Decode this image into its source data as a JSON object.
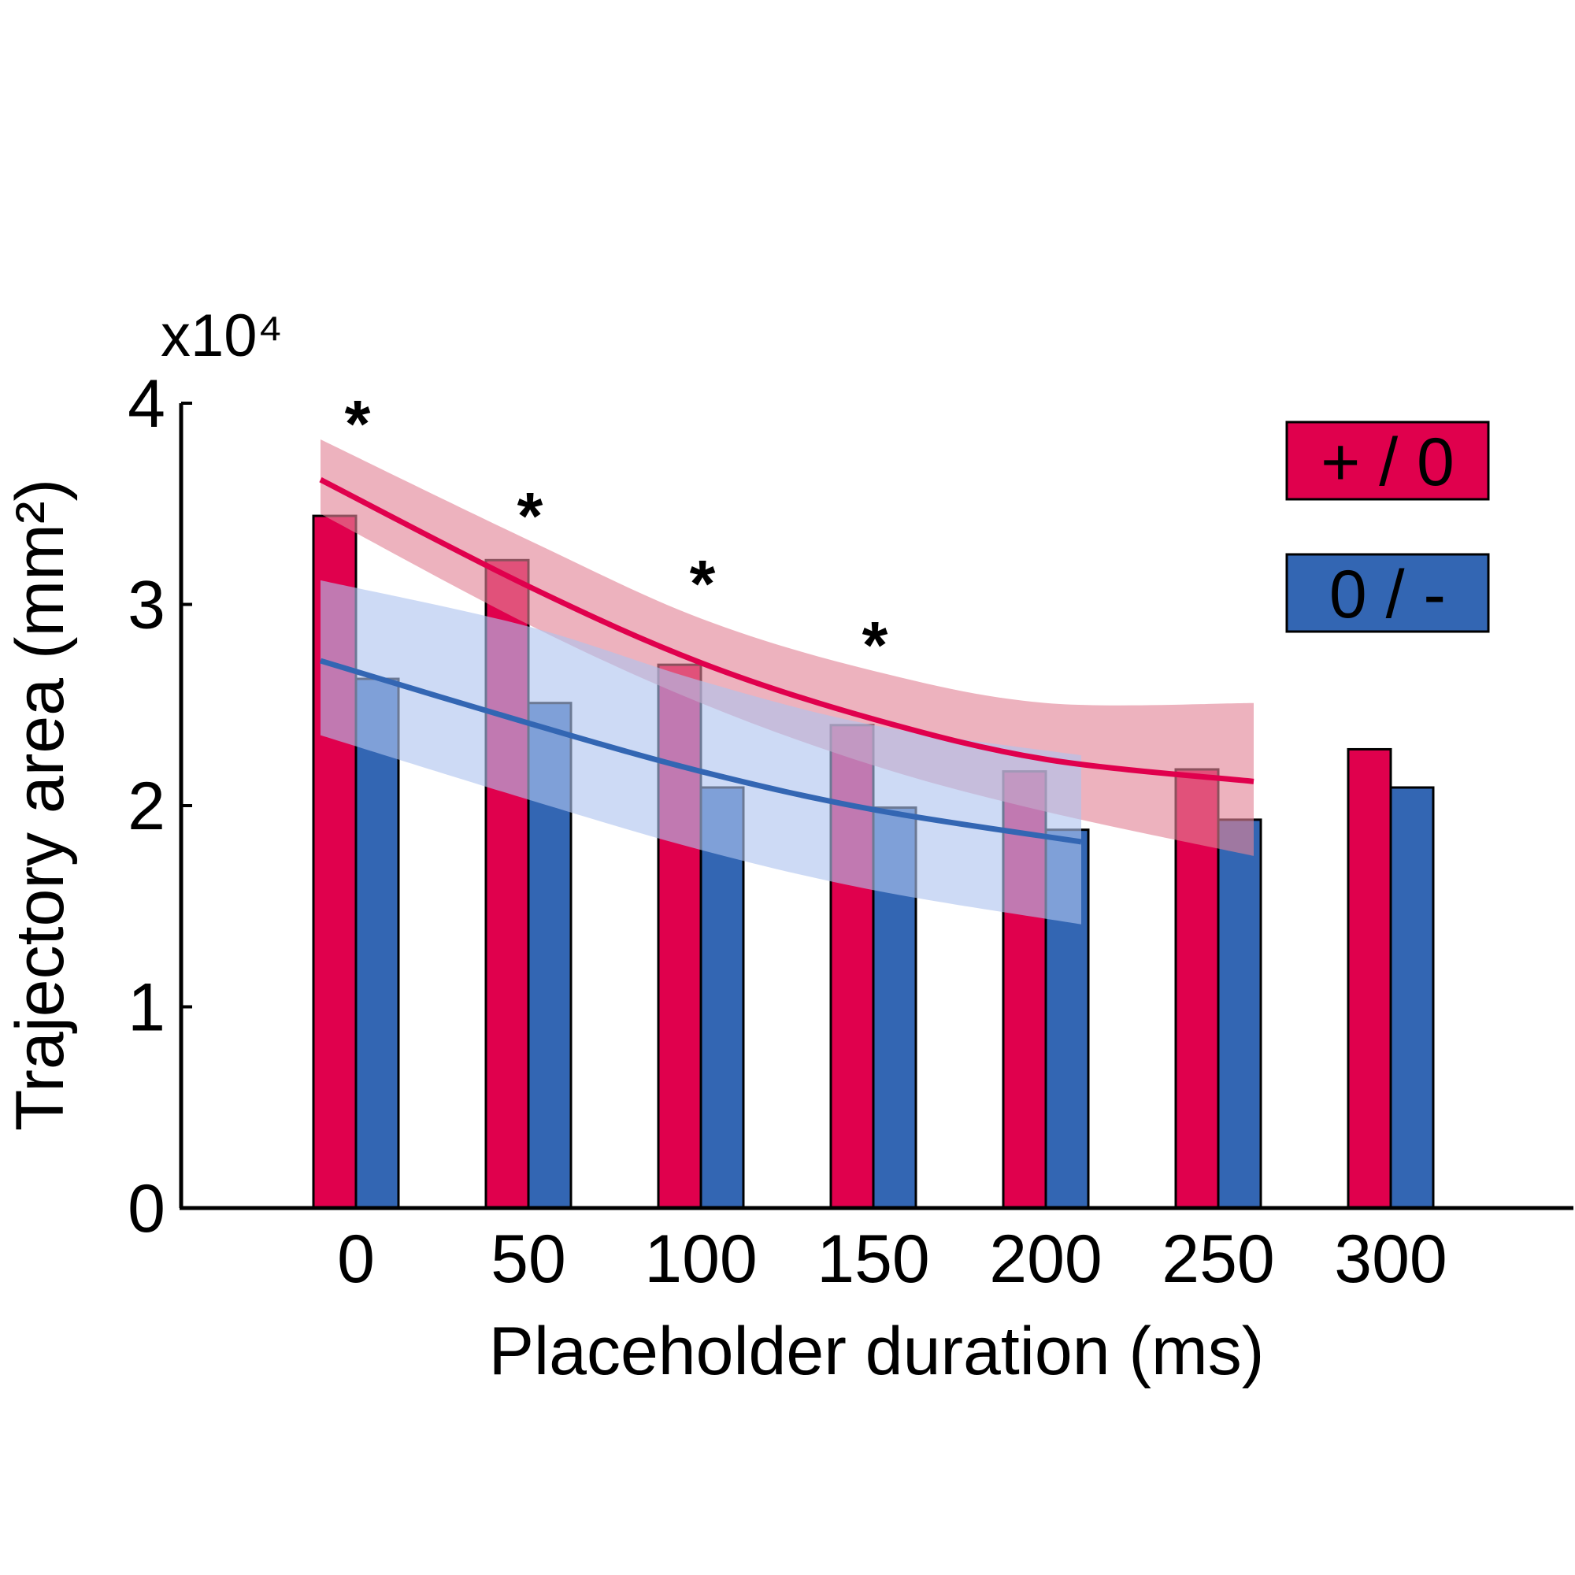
{
  "chart_data": {
    "type": "bar",
    "title": "",
    "xlabel": "Placeholder duration (ms)",
    "ylabel": "Trajectory area (mm²)",
    "y_multiplier": "x10⁴",
    "ylim": [
      0,
      4
    ],
    "yticks": [
      0,
      1,
      2,
      3,
      4
    ],
    "categories": [
      "0",
      "50",
      "100",
      "150",
      "200",
      "250",
      "300"
    ],
    "grid": false,
    "legend_position": "top-right",
    "series": [
      {
        "name": "+ / 0",
        "color": "#E0004D",
        "values": [
          3.44,
          3.22,
          2.7,
          2.4,
          2.17,
          2.18,
          2.28
        ]
      },
      {
        "name": "0 / -",
        "color": "#3366B3",
        "values": [
          2.63,
          2.51,
          2.09,
          1.99,
          1.88,
          1.93,
          2.09
        ]
      }
    ],
    "fits": [
      {
        "series": "+ / 0",
        "color": "#E0004D",
        "band_color": "#E28396",
        "x": [
          0,
          50,
          100,
          150,
          200,
          250
        ],
        "y": [
          3.62,
          3.09,
          2.71,
          2.43,
          2.23,
          2.12
        ],
        "upper": [
          3.82,
          3.32,
          2.93,
          2.67,
          2.51,
          2.51
        ],
        "lower": [
          3.45,
          2.9,
          2.51,
          2.2,
          1.97,
          1.75
        ]
      },
      {
        "series": "0 / -",
        "color": "#3366B3",
        "band_color": "#AFC4EF",
        "x": [
          0,
          50,
          100,
          150,
          200
        ],
        "y": [
          2.72,
          2.41,
          2.17,
          1.98,
          1.82
        ],
        "upper": [
          3.12,
          2.89,
          2.62,
          2.4,
          2.25
        ],
        "lower": [
          2.35,
          2.03,
          1.78,
          1.58,
          1.41
        ]
      }
    ],
    "annotations": [
      {
        "text": "*",
        "x": "0"
      },
      {
        "text": "*",
        "x": "50"
      },
      {
        "text": "*",
        "x": "100"
      },
      {
        "text": "*",
        "x": "150"
      }
    ]
  }
}
